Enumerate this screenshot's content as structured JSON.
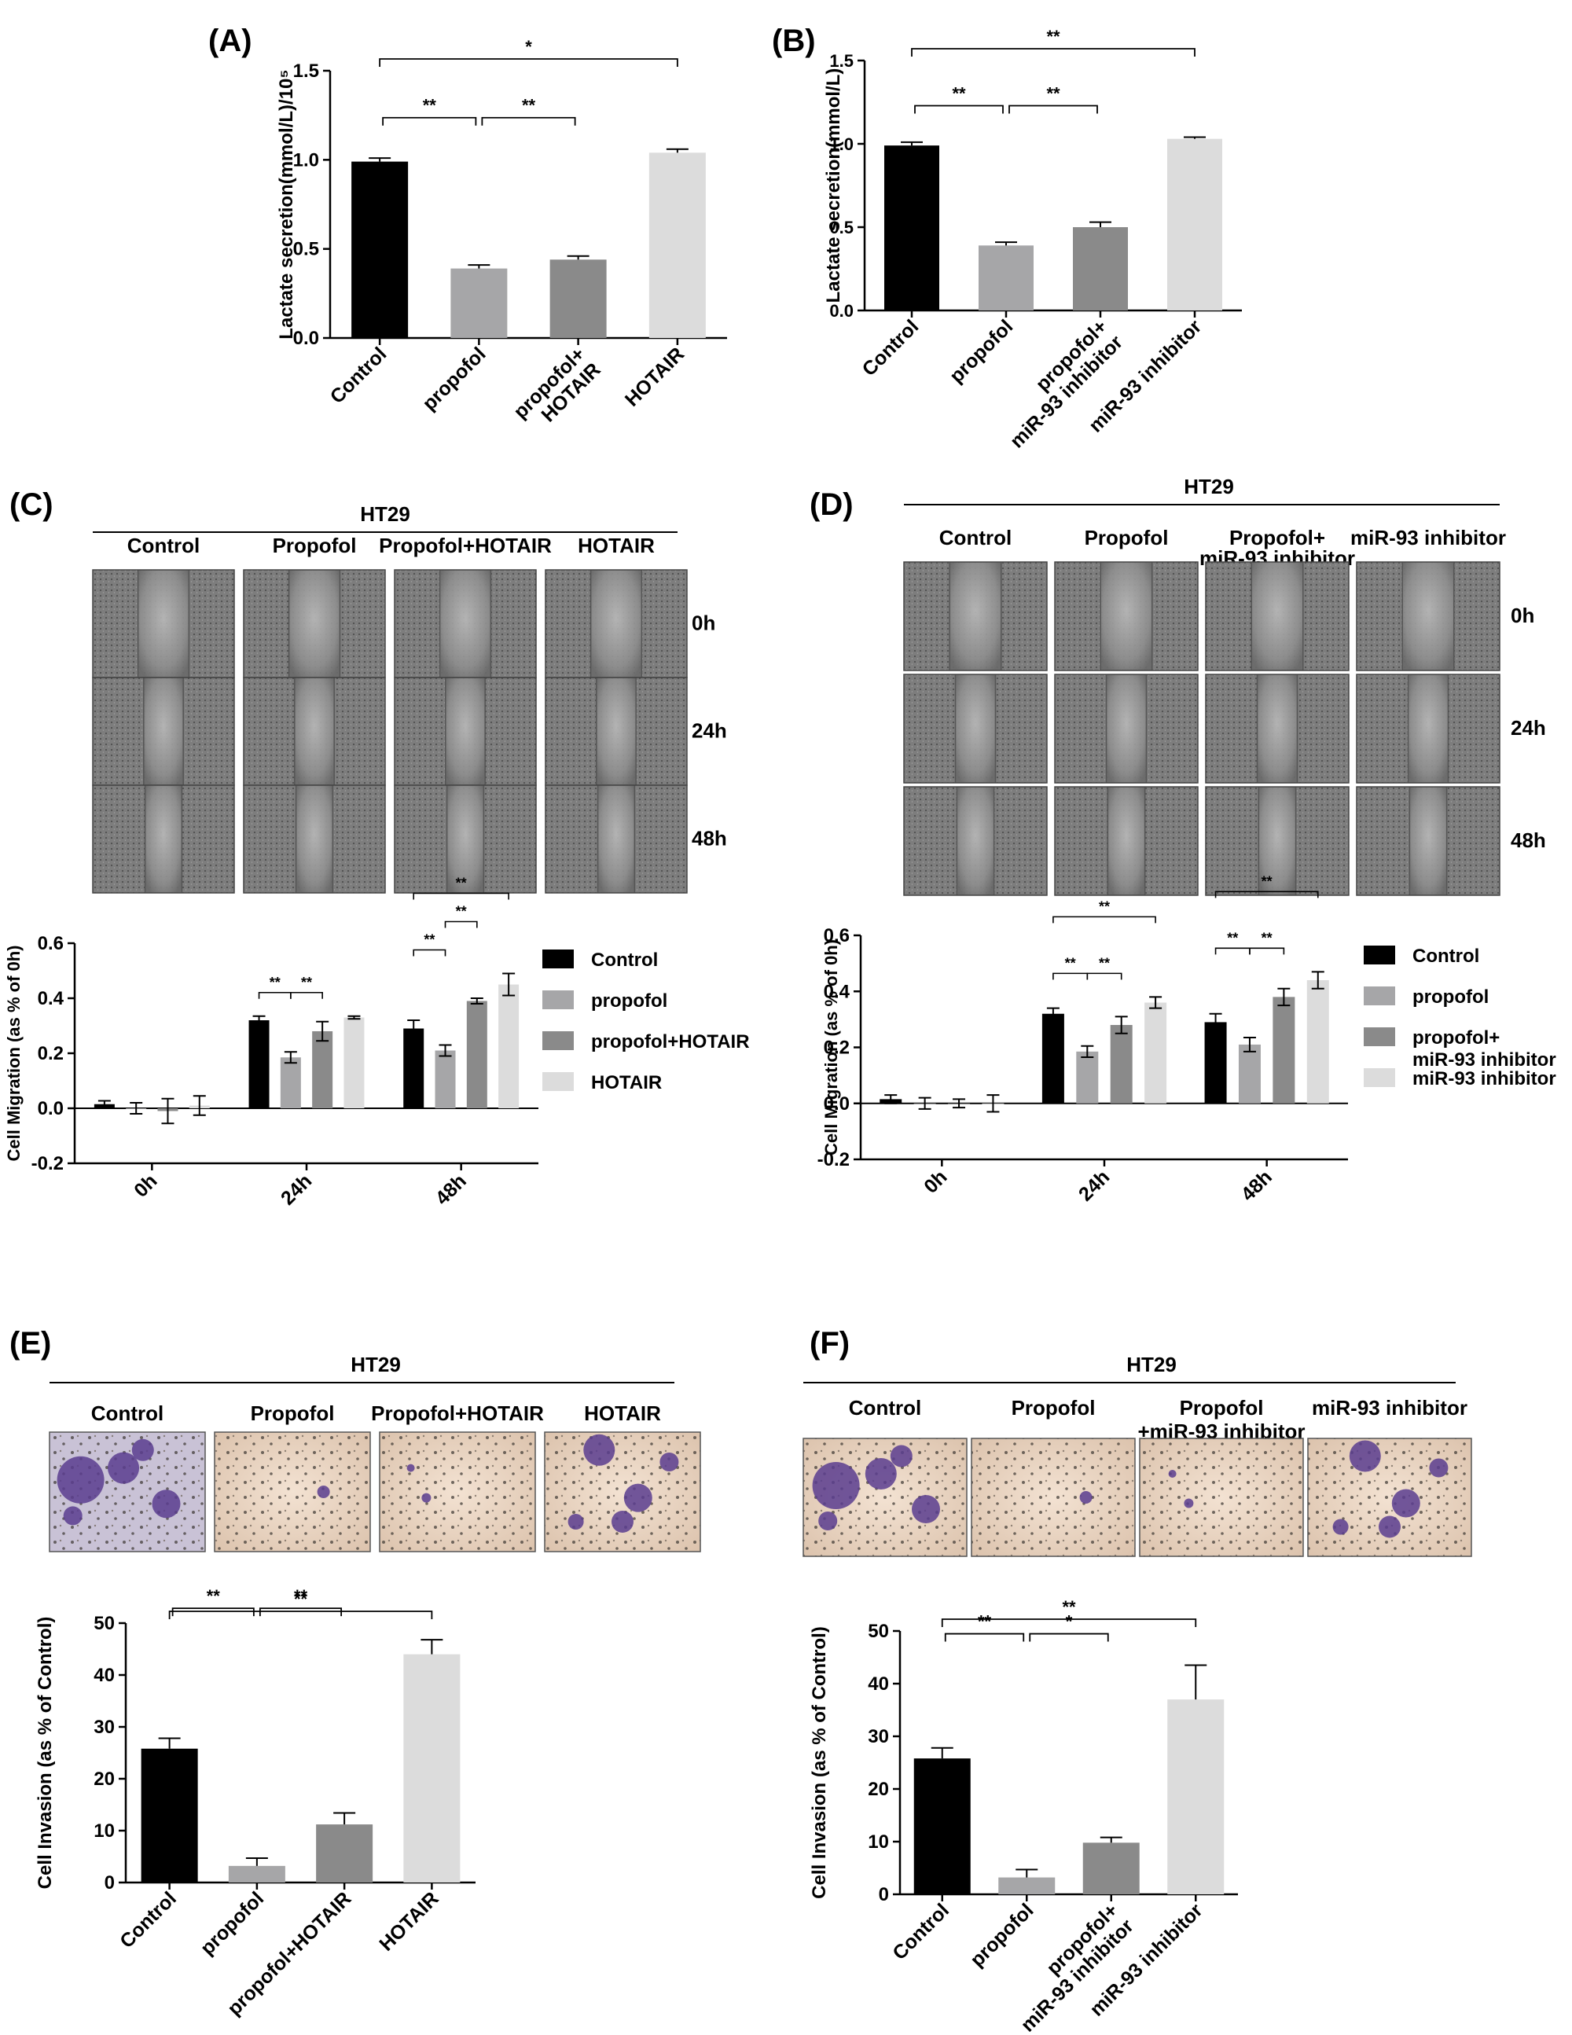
{
  "panels": {
    "A": {
      "letter": "(A)"
    },
    "B": {
      "letter": "(B)"
    },
    "C": {
      "letter": "(C)"
    },
    "D": {
      "letter": "(D)"
    },
    "E": {
      "letter": "(E)"
    },
    "F": {
      "letter": "(F)"
    }
  },
  "image_panels": {
    "C": {
      "cell_line": "HT29",
      "columns": [
        "Control",
        "Propofol",
        "Propofol+HOTAIR",
        "HOTAIR"
      ],
      "rows": [
        "0h",
        "24h",
        "48h"
      ]
    },
    "D": {
      "cell_line": "HT29",
      "columns": [
        "Control",
        "Propofol",
        "Propofol+\nmiR-93 inhibitor",
        "miR-93 inhibitor"
      ],
      "rows": [
        "0h",
        "24h",
        "48h"
      ]
    },
    "E": {
      "cell_line": "HT29",
      "columns": [
        "Control",
        "Propofol",
        "Propofol+HOTAIR",
        "HOTAIR"
      ]
    },
    "F": {
      "cell_line": "HT29",
      "columns": [
        "Control",
        "Propofol",
        "Propofol\n+miR-93 inhibitor",
        "miR-93 inhibitor"
      ]
    }
  },
  "chart_data": [
    {
      "id": "A",
      "type": "bar",
      "ylabel": "Lactate secretion(mmol/L)/10⁵",
      "ylim": [
        0,
        1.5
      ],
      "yticks": [
        "0.0",
        "0.5",
        "1.0",
        "1.5"
      ],
      "categories": [
        "Control",
        "propofol",
        "propofol+\nHOTAIR",
        "HOTAIR"
      ],
      "values": [
        0.99,
        0.39,
        0.44,
        1.04
      ],
      "errors": [
        0.02,
        0.02,
        0.02,
        0.02
      ],
      "colors": [
        "#000000",
        "#a6a6a8",
        "#8a8a8a",
        "#dcdcdc"
      ],
      "significance": [
        {
          "from": 0,
          "to": 1,
          "label": "**"
        },
        {
          "from": 1,
          "to": 2,
          "label": "**"
        },
        {
          "from": 0,
          "to": 3,
          "label": "*"
        }
      ]
    },
    {
      "id": "B",
      "type": "bar",
      "ylabel": "Lactate secretion(mmol/L)",
      "ylim": [
        0,
        1.5
      ],
      "yticks": [
        "0.0",
        "0.5",
        "1.0",
        "1.5"
      ],
      "categories": [
        "Control",
        "propofol",
        "propofol+\nmiR-93 inhibitor",
        "miR-93 inhibitor"
      ],
      "values": [
        0.99,
        0.39,
        0.5,
        1.03
      ],
      "errors": [
        0.02,
        0.02,
        0.03,
        0.01
      ],
      "colors": [
        "#000000",
        "#a6a6a8",
        "#8a8a8a",
        "#dcdcdc"
      ],
      "significance": [
        {
          "from": 0,
          "to": 1,
          "label": "**"
        },
        {
          "from": 1,
          "to": 2,
          "label": "**"
        },
        {
          "from": 0,
          "to": 3,
          "label": "**"
        }
      ]
    },
    {
      "id": "C",
      "type": "bar",
      "ylabel": "Cell Migration (as % of 0h)",
      "ylim": [
        -0.2,
        0.6
      ],
      "yticks": [
        "-0.2",
        "0.0",
        "0.2",
        "0.4",
        "0.6"
      ],
      "categories": [
        "0h",
        "24h",
        "48h"
      ],
      "series": [
        {
          "name": "Control",
          "color": "#000000",
          "values": [
            0.015,
            0.32,
            0.29
          ],
          "errors": [
            0.012,
            0.015,
            0.03
          ]
        },
        {
          "name": "propofol",
          "color": "#a6a6a8",
          "values": [
            0.0,
            0.185,
            0.21
          ],
          "errors": [
            0.02,
            0.02,
            0.02
          ]
        },
        {
          "name": "propofol+HOTAIR",
          "color": "#8a8a8a",
          "values": [
            -0.01,
            0.28,
            0.39
          ],
          "errors": [
            0.045,
            0.035,
            0.01
          ]
        },
        {
          "name": "HOTAIR",
          "color": "#dcdcdc",
          "values": [
            0.01,
            0.33,
            0.45
          ],
          "errors": [
            0.035,
            0.005,
            0.04
          ]
        }
      ],
      "significance": [
        {
          "group": 1,
          "from": 0,
          "to": 1,
          "label": "**"
        },
        {
          "group": 1,
          "from": 1,
          "to": 2,
          "label": "**"
        },
        {
          "group": 2,
          "from": 0,
          "to": 1,
          "label": "**"
        },
        {
          "group": 2,
          "from": 1,
          "to": 2,
          "label": "**"
        },
        {
          "group": 2,
          "from": 0,
          "to": 3,
          "label": "**"
        }
      ]
    },
    {
      "id": "D",
      "type": "bar",
      "ylabel": "Cell Migration (as % of 0h)",
      "ylim": [
        -0.2,
        0.6
      ],
      "yticks": [
        "-0.2",
        "0.0",
        "0.2",
        "0.4",
        "0.6"
      ],
      "categories": [
        "0h",
        "24h",
        "48h"
      ],
      "series": [
        {
          "name": "Control",
          "color": "#000000",
          "values": [
            0.015,
            0.32,
            0.29
          ],
          "errors": [
            0.015,
            0.02,
            0.03
          ]
        },
        {
          "name": "propofol",
          "color": "#a6a6a8",
          "values": [
            0.0,
            0.185,
            0.21
          ],
          "errors": [
            0.02,
            0.02,
            0.025
          ]
        },
        {
          "name": "propofol+\nmiR-93 inhibitor",
          "color": "#8a8a8a",
          "values": [
            0.0,
            0.28,
            0.38
          ],
          "errors": [
            0.015,
            0.03,
            0.03
          ]
        },
        {
          "name": "miR-93 inhibitor",
          "color": "#dcdcdc",
          "values": [
            0.0,
            0.36,
            0.44
          ],
          "errors": [
            0.03,
            0.02,
            0.03
          ]
        }
      ],
      "significance": [
        {
          "group": 1,
          "from": 0,
          "to": 1,
          "label": "**"
        },
        {
          "group": 1,
          "from": 1,
          "to": 2,
          "label": "**"
        },
        {
          "group": 1,
          "from": 0,
          "to": 3,
          "label": "**"
        },
        {
          "group": 2,
          "from": 0,
          "to": 1,
          "label": "**"
        },
        {
          "group": 2,
          "from": 1,
          "to": 2,
          "label": "**"
        },
        {
          "group": 2,
          "from": 0,
          "to": 3,
          "label": "**"
        }
      ]
    },
    {
      "id": "E",
      "type": "bar",
      "ylabel": "Cell Invasion (as % of Control)",
      "ylim": [
        0,
        50
      ],
      "yticks": [
        "0",
        "10",
        "20",
        "30",
        "40",
        "50"
      ],
      "categories": [
        "Control",
        "propofol",
        "propofol+HOTAIR",
        "HOTAIR"
      ],
      "values": [
        25.8,
        3.2,
        11.2,
        44.0
      ],
      "errors": [
        2.0,
        1.5,
        2.2,
        2.8
      ],
      "colors": [
        "#000000",
        "#a6a6a8",
        "#8a8a8a",
        "#dcdcdc"
      ],
      "significance": [
        {
          "from": 0,
          "to": 1,
          "label": "**"
        },
        {
          "from": 1,
          "to": 2,
          "label": "**"
        },
        {
          "from": 0,
          "to": 3,
          "label": "**"
        }
      ]
    },
    {
      "id": "F",
      "type": "bar",
      "ylabel": "Cell Invasion (as % of Control)",
      "ylim": [
        0,
        50
      ],
      "yticks": [
        "0",
        "10",
        "20",
        "30",
        "40",
        "50"
      ],
      "categories": [
        "Control",
        "propofol",
        "propofol+\nmiR-93 inhibitor",
        "miR-93 inhibitor"
      ],
      "values": [
        25.8,
        3.2,
        9.8,
        37.0
      ],
      "errors": [
        2.0,
        1.5,
        1.0,
        6.5
      ],
      "colors": [
        "#000000",
        "#a6a6a8",
        "#8a8a8a",
        "#dcdcdc"
      ],
      "significance": [
        {
          "from": 0,
          "to": 1,
          "label": "**"
        },
        {
          "from": 1,
          "to": 2,
          "label": "*"
        },
        {
          "from": 0,
          "to": 3,
          "label": "**"
        }
      ]
    }
  ]
}
